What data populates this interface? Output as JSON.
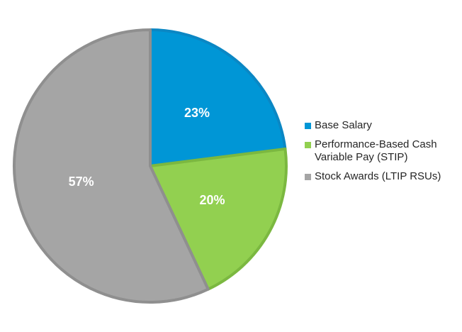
{
  "chart_data": {
    "type": "pie",
    "title": "",
    "slices": [
      {
        "name": "Base Salary",
        "value": 23,
        "label": "23%",
        "color": "#0096d6",
        "edge": "#0b87c4"
      },
      {
        "name": "Performance-Based Cash Variable Pay (STIP)",
        "value": 20,
        "label": "20%",
        "color": "#92d050",
        "edge": "#7bb840"
      },
      {
        "name": "Stock Awards (LTIP RSUs)",
        "value": 57,
        "label": "57%",
        "color": "#a5a5a5",
        "edge": "#8f8f8f"
      }
    ],
    "start_angle_deg": 0,
    "direction": "clockwise",
    "legend": {
      "position": "right",
      "items": [
        {
          "label": "Base Salary",
          "color": "#0096d6"
        },
        {
          "label": "Performance-Based Cash Variable Pay (STIP)",
          "color": "#92d050"
        },
        {
          "label": "Stock Awards (LTIP RSUs)",
          "color": "#a5a5a5"
        }
      ]
    }
  }
}
